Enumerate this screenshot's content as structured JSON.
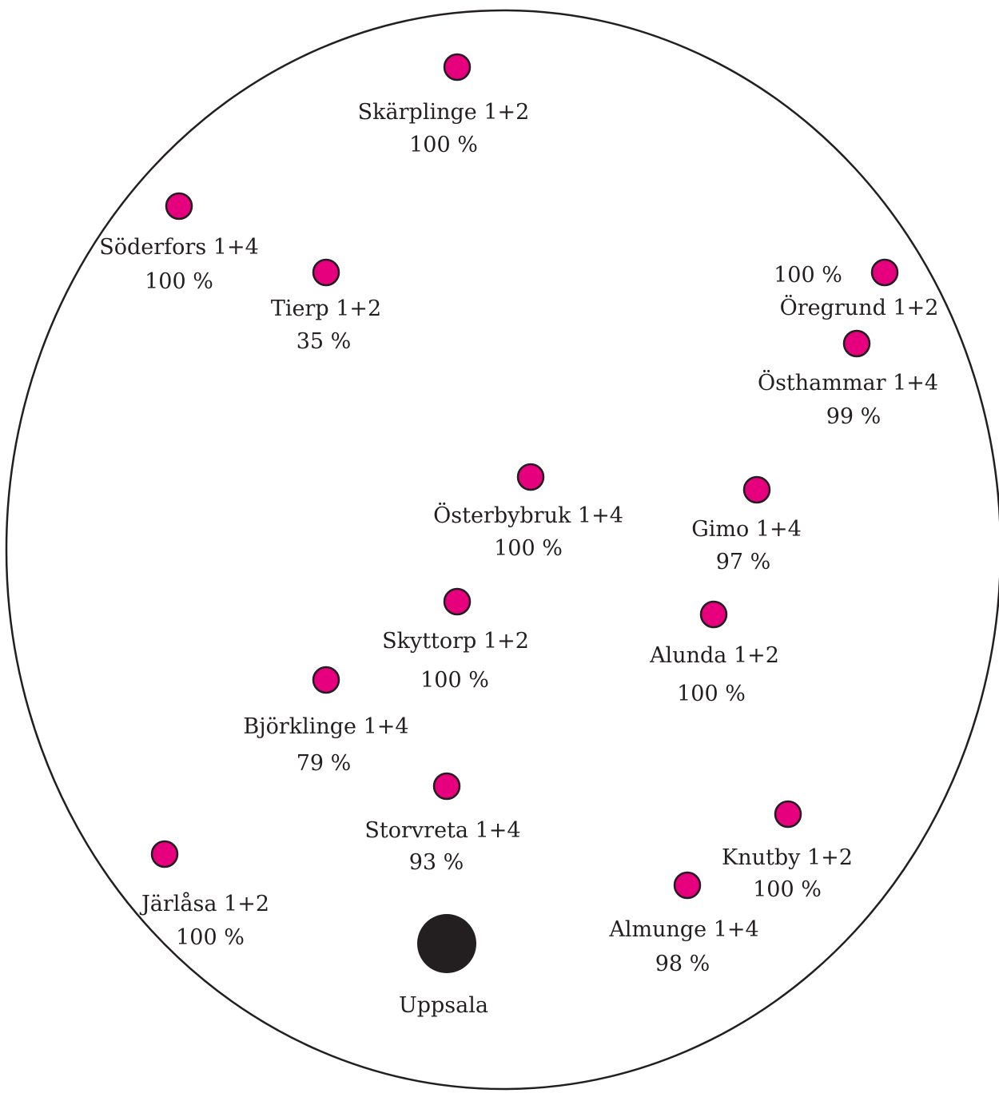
{
  "colors": {
    "station_fill": "#e6007e",
    "station_stroke": "#231f20",
    "hub_fill": "#231f20",
    "outline": "#231f20",
    "text": "#231f20"
  },
  "hub": {
    "name": "Uppsala"
  },
  "stations": [
    {
      "name": "Skärplinge 1+2",
      "value": "100 %"
    },
    {
      "name": "Söderfors 1+4",
      "value": "100 %"
    },
    {
      "name": "Tierp 1+2",
      "value": "35 %"
    },
    {
      "name": "Öregrund 1+2",
      "value": "100 %"
    },
    {
      "name": "Östhammar 1+4",
      "value": "99 %"
    },
    {
      "name": "Österbybruk 1+4",
      "value": "100 %"
    },
    {
      "name": "Gimo 1+4",
      "value": "97 %"
    },
    {
      "name": "Skyttorp 1+2",
      "value": "100 %"
    },
    {
      "name": "Alunda 1+2",
      "value": "100 %"
    },
    {
      "name": "Björklinge 1+4",
      "value": "79 %"
    },
    {
      "name": "Storvreta 1+4",
      "value": "93 %"
    },
    {
      "name": "Knutby 1+2",
      "value": "100 %"
    },
    {
      "name": "Järlåsa 1+2",
      "value": "100 %"
    },
    {
      "name": "Almunge 1+4",
      "value": "98 %"
    }
  ]
}
